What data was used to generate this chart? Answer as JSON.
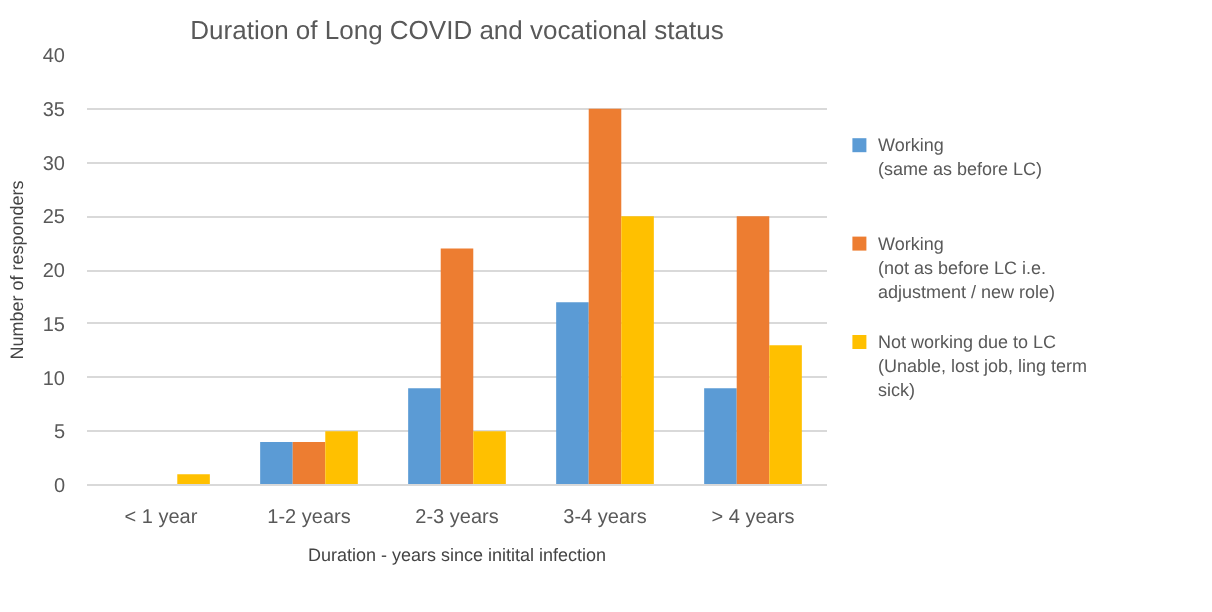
{
  "chart_data": {
    "type": "bar",
    "title": "Duration of Long COVID and vocational status",
    "xlabel": "Duration - years since initital infection",
    "ylabel": "Number of responders",
    "categories": [
      "< 1 year",
      "1-2 years",
      "2-3 years",
      "3-4 years",
      "> 4 years"
    ],
    "series": [
      {
        "name": "Working\n(same as before LC)",
        "color": "#5b9bd5",
        "values": [
          0,
          4,
          9,
          17,
          9
        ]
      },
      {
        "name": "Working\n(not as before LC i.e.\nadjustment / new role)",
        "color": "#ed7d31",
        "values": [
          0,
          4,
          22,
          35,
          25
        ]
      },
      {
        "name": "Not working due to LC\n(Unable, lost job, ling term\nsick)",
        "color": "#ffc000",
        "values": [
          1,
          5,
          5,
          25,
          13
        ]
      }
    ],
    "ylim": [
      0,
      40
    ],
    "yticks": [
      0,
      5,
      10,
      15,
      20,
      25,
      30,
      35,
      40
    ],
    "grid": "y",
    "legend": "right"
  }
}
